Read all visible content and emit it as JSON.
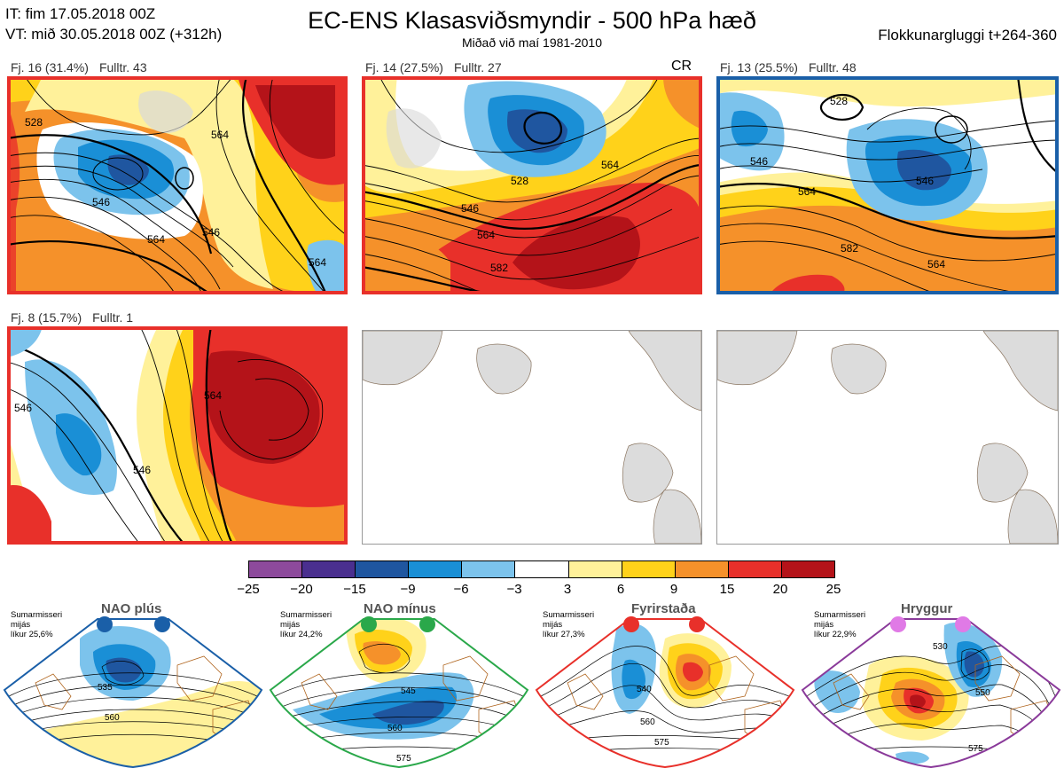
{
  "header": {
    "issue_time": "IT: fim 17.05.2018 00Z",
    "valid_time": "VT: mið 30.05.2018 00Z  (+312h)",
    "title": "EC-ENS Klasasviðsmyndir - 500 hPa hæð",
    "subtitle": "Miðað við maí 1981-2010",
    "window": "Flokkunargluggi t+264-360"
  },
  "clusters": [
    {
      "label": "Fj. 16 (31.4%)",
      "members": "Fulltr. 43",
      "border": "#e8302a",
      "contours": [
        "564",
        "546",
        "564",
        "564",
        "546",
        "528"
      ]
    },
    {
      "label": "Fj. 14 (27.5%)",
      "members": "Fulltr. 27",
      "tag": "CR",
      "border": "#e8302a",
      "contours": [
        "546",
        "564",
        "564",
        "528",
        "582"
      ]
    },
    {
      "label": "Fj. 13 (25.5%)",
      "members": "Fulltr. 48",
      "border": "#1a5fa8",
      "contours": [
        "546",
        "528",
        "546",
        "564",
        "582",
        "564"
      ]
    },
    {
      "label": "Fj. 8 (15.7%)",
      "members": "Fulltr. 1",
      "border": "#e8302a",
      "contours": [
        "546",
        "564",
        "546"
      ]
    }
  ],
  "colorbar": {
    "ticks": [
      "−25",
      "−20",
      "−15",
      "−9",
      "−6",
      "−3",
      "3",
      "6",
      "9",
      "15",
      "20",
      "25"
    ],
    "colors": [
      "#8d4a9c",
      "#4a2f8f",
      "#1f56a0",
      "#1a8fd6",
      "#7cc3ec",
      "#ffffff",
      "#fff19a",
      "#ffd21a",
      "#f5912a",
      "#e8302a",
      "#b41319"
    ]
  },
  "regimes": [
    {
      "name": "NAO plús",
      "color": "#1a5fa8",
      "note": [
        "Sumarmisseri",
        "mijás",
        "líkur 25,6%"
      ],
      "labels": [
        "535",
        "560"
      ]
    },
    {
      "name": "NAO mínus",
      "color": "#2aa84a",
      "note": [
        "Sumarmisseri",
        "mijás",
        "líkur 24,2%"
      ],
      "labels": [
        "545",
        "560",
        "575"
      ]
    },
    {
      "name": "Fyrirstaða",
      "color": "#e8302a",
      "note": [
        "Sumarmisseri",
        "mijás",
        "líkur 27,3%"
      ],
      "labels": [
        "540",
        "560",
        "575"
      ]
    },
    {
      "name": "Hryggur",
      "color": "#8a3a9a",
      "note": [
        "Sumarmisseri",
        "mijás",
        "líkur 22,9%"
      ],
      "labels": [
        "530",
        "550",
        "575"
      ]
    }
  ]
}
